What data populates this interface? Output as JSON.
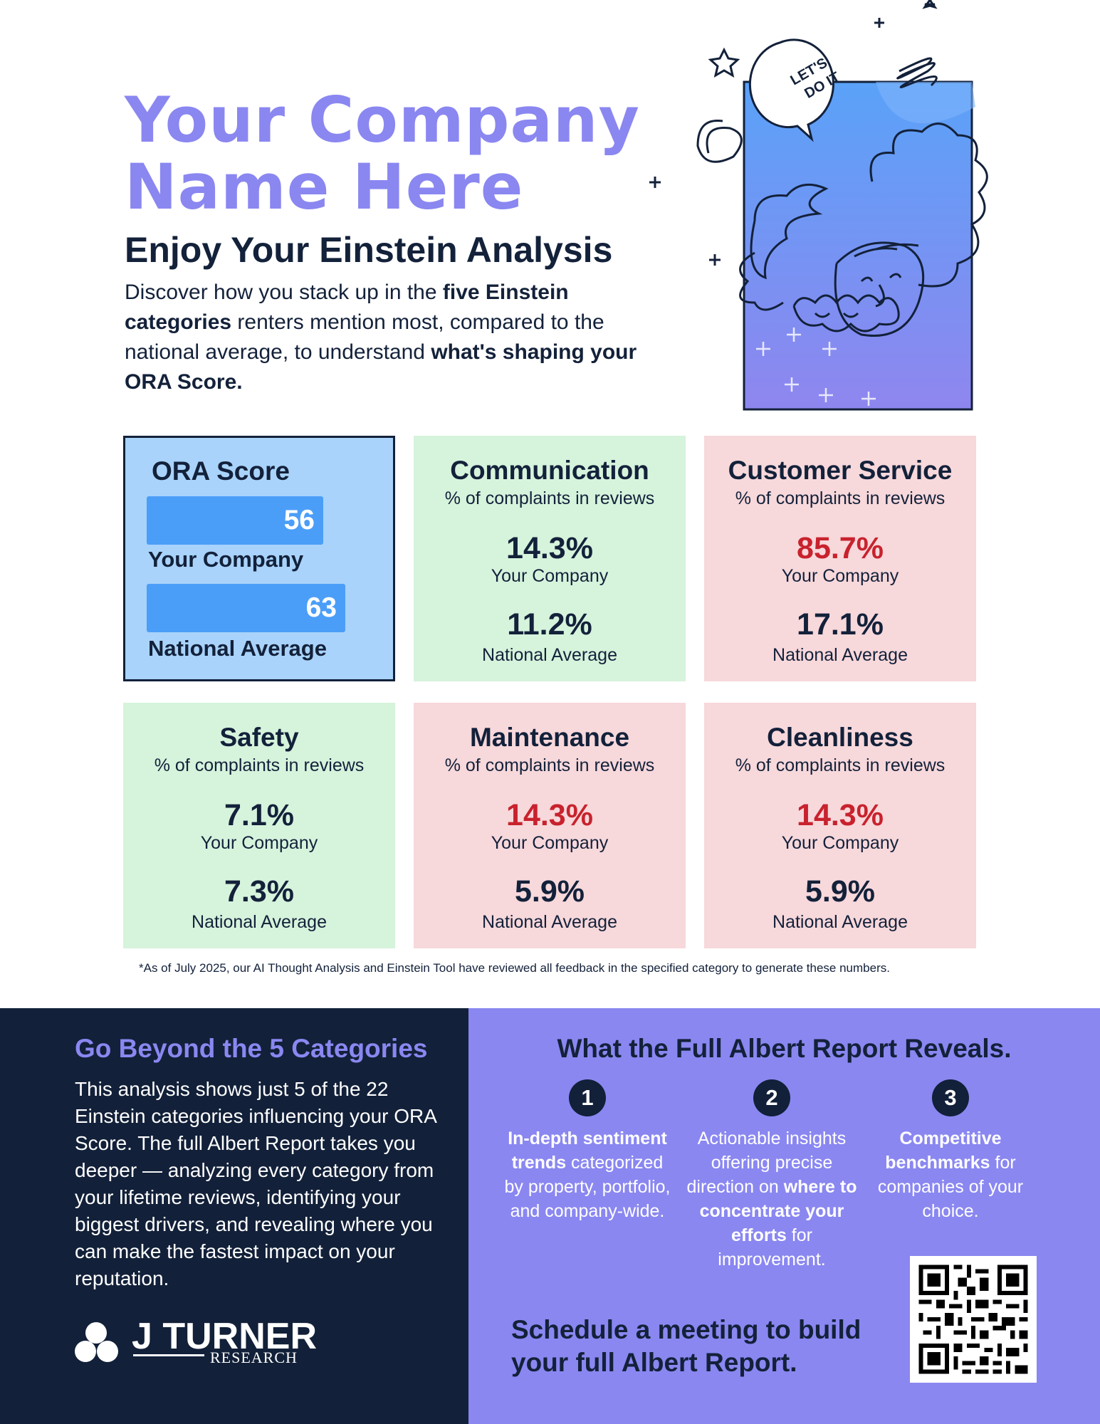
{
  "header": {
    "company_name": "Your Company Name Here",
    "subtitle": "Enjoy Your Einstein Analysis",
    "intro": {
      "p1": "Discover how you stack up in the ",
      "b1": "five Einstein categories",
      "p2": " renters mention most, compared to the national average, to understand ",
      "b2": "what's shaping your ORA Score."
    }
  },
  "illustration": {
    "speech_bubble": "LET'S DO IT",
    "icon": "einstein-doodle-icon"
  },
  "ora": {
    "title": "ORA Score",
    "your_value": "56",
    "your_label": "Your Company",
    "nat_value": "63",
    "nat_label": "National Average",
    "bar_color": "#4b9ef8"
  },
  "cards": [
    {
      "title": "Communication",
      "sub": "% of complaints in reviews",
      "your": "14.3%",
      "your_label": "Your Company",
      "nat": "11.2%",
      "nat_label": "National Average",
      "status": "good"
    },
    {
      "title": "Customer Service",
      "sub": "% of complaints in reviews",
      "your": "85.7%",
      "your_label": "Your Company",
      "nat": "17.1%",
      "nat_label": "National Average",
      "status": "bad"
    },
    {
      "title": "Safety",
      "sub": "% of complaints in reviews",
      "your": "7.1%",
      "your_label": "Your Company",
      "nat": "7.3%",
      "nat_label": "National Average",
      "status": "good"
    },
    {
      "title": "Maintenance",
      "sub": "% of complaints in reviews",
      "your": "14.3%",
      "your_label": "Your Company",
      "nat": "5.9%",
      "nat_label": "National Average",
      "status": "bad"
    },
    {
      "title": "Cleanliness",
      "sub": "% of complaints in reviews",
      "your": "14.3%",
      "your_label": "Your Company",
      "nat": "5.9%",
      "nat_label": "National Average",
      "status": "bad"
    }
  ],
  "footnote": "*As of July 2025, our AI Thought Analysis and Einstein Tool have reviewed all feedback in the specified category to generate these numbers.",
  "beyond": {
    "heading": "Go Beyond the 5 Categories",
    "text": "This analysis shows just 5 of the 22 Einstein categories influencing your ORA Score. The full Albert Report takes you deeper — analyzing every category from your lifetime reviews, identifying your biggest drivers, and revealing where you can make the fastest impact on your reputation."
  },
  "logo": {
    "name": "J TURNER",
    "tag": "RESEARCH"
  },
  "reveal": {
    "heading": "What the Full Albert Report Reveals.",
    "steps": [
      {
        "num": "1",
        "b1": "In-depth sentiment trends",
        "t1": " categorized by property, portfolio, and company-wide.",
        "b2": "",
        "t2": ""
      },
      {
        "num": "2",
        "t0": "Actionable insights offering precise direction on ",
        "b1": "where to concentrate your efforts",
        "t1": " for improvement."
      },
      {
        "num": "3",
        "b1": "Competitive benchmarks",
        "t1": " for companies of your choice."
      }
    ],
    "cta": "Schedule a meeting to build your full Albert Report.",
    "qr_icon": "qr-code-icon"
  },
  "colors": {
    "accent": "#8a87f1",
    "navy": "#122039",
    "good": "#d6f3dc",
    "bad": "#f7d8db",
    "bad_text": "#c8222d"
  }
}
